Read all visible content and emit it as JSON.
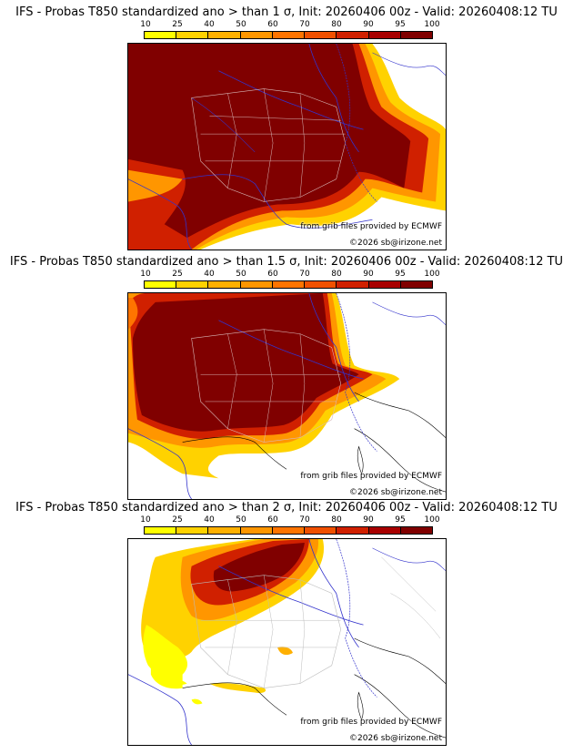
{
  "colorbar": {
    "ticks": [
      "10",
      "25",
      "40",
      "50",
      "60",
      "70",
      "80",
      "90",
      "95",
      "100"
    ],
    "colors": [
      "#ffff00",
      "#ffd200",
      "#ffb000",
      "#ff9600",
      "#ff7400",
      "#f05000",
      "#d02000",
      "#a80000",
      "#800000"
    ]
  },
  "panels": [
    {
      "title": "IFS - Probas T850  standardized ano > than 1 σ, Init: 20260406 00z - Valid: 20260408:12 TU",
      "source_credit": "from grib files provided by ECMWF",
      "site_credit": "©2026 sb@irizone.net"
    },
    {
      "title": "IFS - Probas T850  standardized ano > than 1.5 σ, Init: 20260406 00z - Valid: 20260408:12 TU",
      "source_credit": "from grib files provided by ECMWF",
      "site_credit": "©2026 sb@irizone.net"
    },
    {
      "title": "IFS - Probas T850  standardized ano > than 2 σ, Init: 20260406 00z - Valid: 20260408:12 TU",
      "source_credit": "from grib files provided by ECMWF",
      "site_credit": "©2026 sb@irizone.net"
    }
  ]
}
